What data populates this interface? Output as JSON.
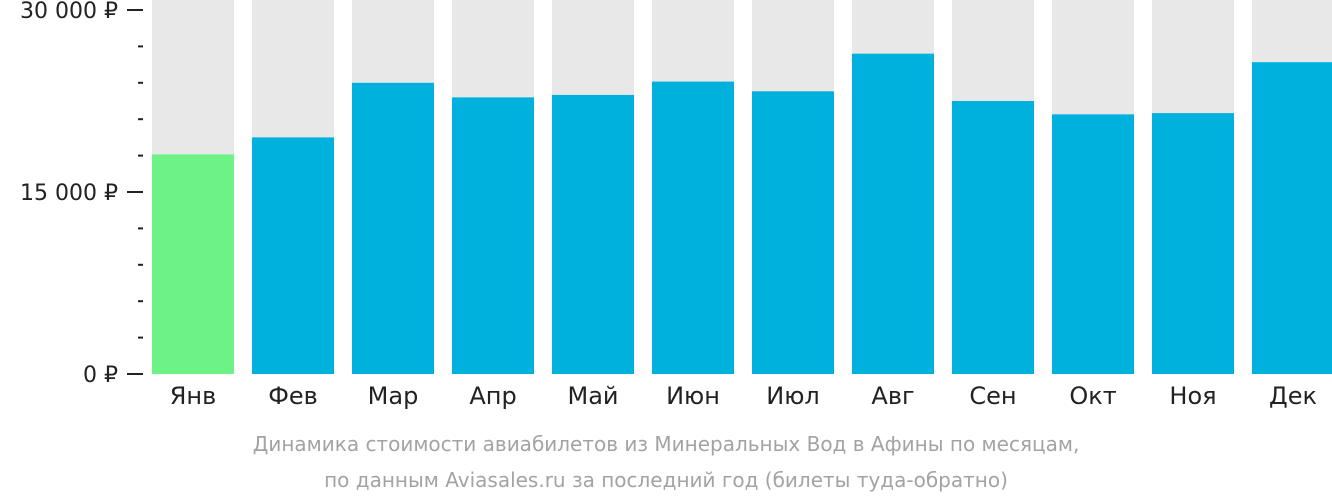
{
  "chart_data": {
    "type": "bar",
    "categories": [
      "Янв",
      "Фев",
      "Мар",
      "Апр",
      "Май",
      "Июн",
      "Июл",
      "Авг",
      "Сен",
      "Окт",
      "Ноя",
      "Дек"
    ],
    "values": [
      18100,
      19500,
      24000,
      22800,
      23000,
      24100,
      23300,
      26400,
      22500,
      21400,
      21500,
      25700
    ],
    "ylim": [
      0,
      30000
    ],
    "yticks": [
      {
        "value": 0,
        "label": "0 ₽"
      },
      {
        "value": 15000,
        "label": "15 000 ₽"
      },
      {
        "value": 30000,
        "label": "30 000 ₽"
      }
    ],
    "minor_tick_step": 3000,
    "highlight_index": 0,
    "colors": {
      "bar": "#00b0dd",
      "highlight": "#6df286",
      "background_column": "#e8e8e8",
      "axis": "#222222"
    },
    "grid": false,
    "legend": "none"
  },
  "caption": {
    "line1": "Динамика стоимости авиабилетов из Минеральных Вод в Афины по месяцам,",
    "line2": "по данным Aviasales.ru за последний год (билеты туда-обратно)"
  }
}
